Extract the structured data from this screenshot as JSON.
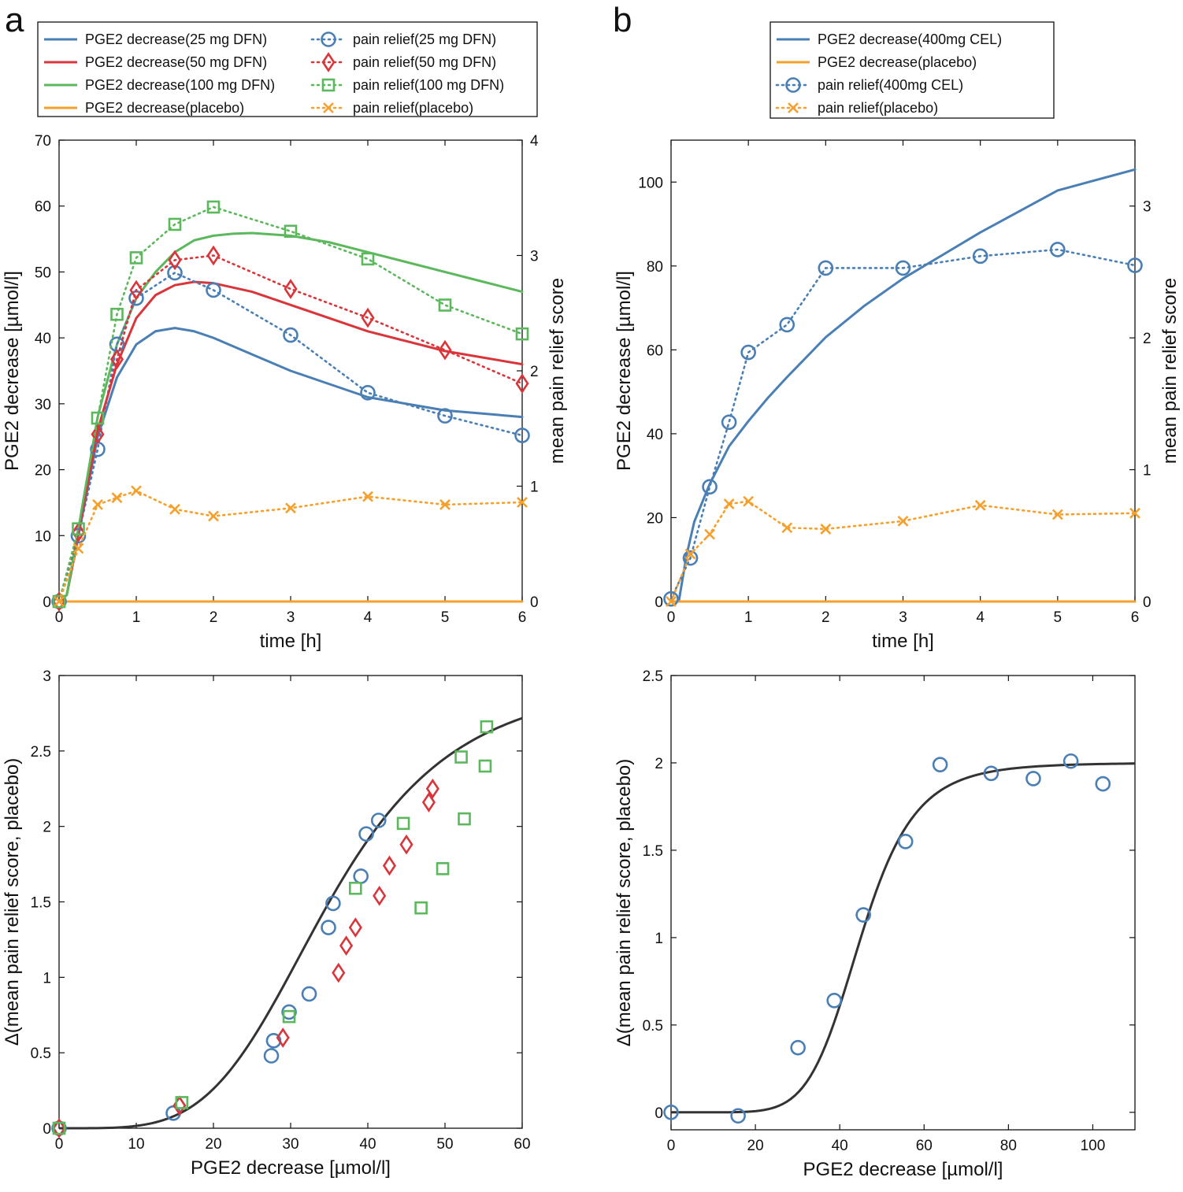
{
  "figure": {
    "panel_labels": [
      "a",
      "b"
    ],
    "colors": {
      "blue": "#4a7fb5",
      "red": "#d9353a",
      "green": "#5cb85c",
      "orange": "#f5a02c",
      "dark": "#333333"
    }
  },
  "chart_data": [
    {
      "id": "a-top",
      "panel": "a",
      "type": "line",
      "xlabel": "time [h]",
      "ylabel": "PGE2 decrease [µmol/l]",
      "ylabel_right": "mean pain relief score",
      "xlim": [
        0,
        6
      ],
      "ylim": [
        0,
        70
      ],
      "ylim_right": [
        0,
        4
      ],
      "xticks": [
        0,
        1,
        2,
        3,
        4,
        5,
        6
      ],
      "yticks": [
        0,
        10,
        20,
        30,
        40,
        50,
        60,
        70
      ],
      "yticks_right": [
        0,
        1,
        2,
        3,
        4
      ],
      "legend": {
        "col1": [
          {
            "label": "PGE2 decrease(25 mg DFN)",
            "color": "blue",
            "style": "solid"
          },
          {
            "label": "PGE2 decrease(50 mg DFN)",
            "color": "red",
            "style": "solid"
          },
          {
            "label": "PGE2 decrease(100 mg DFN)",
            "color": "green",
            "style": "solid"
          },
          {
            "label": "PGE2 decrease(placebo)",
            "color": "orange",
            "style": "solid"
          }
        ],
        "col2": [
          {
            "label": "pain relief(25 mg DFN)",
            "color": "blue",
            "marker": "circle"
          },
          {
            "label": "pain relief(50 mg DFN)",
            "color": "red",
            "marker": "diamond"
          },
          {
            "label": "pain relief(100 mg DFN)",
            "color": "green",
            "marker": "square"
          },
          {
            "label": "pain relief(placebo)",
            "color": "orange",
            "marker": "x"
          }
        ]
      },
      "series": [
        {
          "name": "PGE2 decrease(25 mg DFN)",
          "axis": "left",
          "kind": "line",
          "color": "blue",
          "x": [
            0,
            0.1,
            0.25,
            0.5,
            0.75,
            1,
            1.25,
            1.5,
            1.75,
            2,
            2.5,
            3,
            3.5,
            4,
            4.5,
            5,
            5.5,
            6
          ],
          "y": [
            0,
            1,
            10,
            25,
            34,
            39,
            41,
            41.5,
            41,
            40,
            37.5,
            35,
            33,
            31,
            30,
            29,
            28.5,
            28
          ]
        },
        {
          "name": "PGE2 decrease(50 mg DFN)",
          "axis": "left",
          "kind": "line",
          "color": "red",
          "x": [
            0,
            0.1,
            0.25,
            0.5,
            0.75,
            1,
            1.25,
            1.5,
            1.75,
            2,
            2.5,
            3,
            3.5,
            4,
            4.5,
            5,
            5.5,
            6
          ],
          "y": [
            0,
            1,
            10,
            26,
            36,
            43,
            46.5,
            48,
            48.5,
            48.3,
            47,
            45,
            43,
            41,
            39.5,
            38,
            37,
            36
          ]
        },
        {
          "name": "PGE2 decrease(100 mg DFN)",
          "axis": "left",
          "kind": "line",
          "color": "green",
          "x": [
            0,
            0.1,
            0.25,
            0.5,
            0.75,
            1,
            1.25,
            1.5,
            1.75,
            2,
            2.25,
            2.5,
            3,
            3.5,
            4,
            4.5,
            5,
            5.5,
            6
          ],
          "y": [
            0,
            1,
            11,
            28,
            39,
            46,
            50,
            53,
            54.8,
            55.5,
            55.8,
            55.9,
            55.5,
            54.5,
            53,
            51.5,
            50,
            48.5,
            47
          ]
        },
        {
          "name": "PGE2 decrease(placebo)",
          "axis": "left",
          "kind": "line",
          "color": "orange",
          "x": [
            0,
            6
          ],
          "y": [
            0,
            0
          ]
        },
        {
          "name": "pain relief(25 mg DFN)",
          "axis": "right",
          "kind": "dotted-marker",
          "marker": "circle",
          "color": "blue",
          "x": [
            0,
            0.25,
            0.5,
            0.75,
            1,
            1.5,
            2,
            3,
            4,
            5,
            6
          ],
          "y": [
            0,
            0.57,
            1.32,
            2.23,
            2.63,
            2.85,
            2.7,
            2.31,
            1.81,
            1.61,
            1.44
          ]
        },
        {
          "name": "pain relief(50 mg DFN)",
          "axis": "right",
          "kind": "dotted-marker",
          "marker": "diamond",
          "color": "red",
          "x": [
            0,
            0.25,
            0.5,
            0.75,
            1,
            1.5,
            2,
            3,
            4,
            5,
            6
          ],
          "y": [
            0,
            0.6,
            1.45,
            2.1,
            2.7,
            2.96,
            3.0,
            2.71,
            2.46,
            2.18,
            1.89
          ]
        },
        {
          "name": "pain relief(100 mg DFN)",
          "axis": "right",
          "kind": "dotted-marker",
          "marker": "square",
          "color": "green",
          "x": [
            0,
            0.25,
            0.5,
            0.75,
            1,
            1.5,
            2,
            3,
            4,
            5,
            6
          ],
          "y": [
            0,
            0.63,
            1.59,
            2.49,
            2.98,
            3.27,
            3.42,
            3.21,
            2.97,
            2.57,
            2.32
          ]
        },
        {
          "name": "pain relief(placebo)",
          "axis": "right",
          "kind": "dotted-marker",
          "marker": "x",
          "color": "orange",
          "x": [
            0,
            0.25,
            0.5,
            0.75,
            1,
            1.5,
            2,
            3,
            4,
            5,
            6
          ],
          "y": [
            0,
            0.46,
            0.84,
            0.9,
            0.96,
            0.8,
            0.74,
            0.81,
            0.91,
            0.84,
            0.86
          ]
        }
      ]
    },
    {
      "id": "a-bottom",
      "panel": "a",
      "type": "scatter",
      "xlabel": "PGE2 decrease [µmol/l]",
      "ylabel": "Δ(mean pain relief score, placebo)",
      "xlim": [
        0,
        60
      ],
      "ylim": [
        0,
        3
      ],
      "xticks": [
        0,
        10,
        20,
        30,
        40,
        50,
        60
      ],
      "yticks": [
        0,
        0.5,
        1,
        1.5,
        2,
        2.5,
        3
      ],
      "fit": {
        "color": "dark",
        "emax": 3.0,
        "ec50": 35,
        "hill": 4.2,
        "x": [
          0,
          5,
          10,
          15,
          20,
          25,
          30,
          35,
          40,
          45,
          50,
          55,
          60
        ]
      },
      "series": [
        {
          "name": "25 mg DFN",
          "marker": "circle",
          "color": "blue",
          "x": [
            0,
            14.8,
            27.5,
            27.8,
            29.8,
            32.4,
            34.9,
            35.5,
            39.1,
            39.8,
            41.4
          ],
          "y": [
            0,
            0.1,
            0.48,
            0.58,
            0.77,
            0.89,
            1.33,
            1.49,
            1.67,
            1.95,
            2.04
          ]
        },
        {
          "name": "50 mg DFN",
          "marker": "diamond",
          "color": "red",
          "x": [
            0,
            15.6,
            29,
            36.2,
            37.2,
            38.4,
            41.5,
            42.8,
            45,
            47.9,
            48.4
          ],
          "y": [
            0,
            0.15,
            0.6,
            1.03,
            1.21,
            1.33,
            1.54,
            1.74,
            1.88,
            2.16,
            2.25
          ]
        },
        {
          "name": "100 mg DFN",
          "marker": "square",
          "color": "green",
          "x": [
            0,
            15.9,
            29.8,
            38.4,
            44.6,
            46.9,
            49.7,
            52.1,
            52.5,
            55.2,
            55.4
          ],
          "y": [
            0,
            0.17,
            0.74,
            1.59,
            2.02,
            1.46,
            1.72,
            2.46,
            2.05,
            2.4,
            2.66
          ]
        }
      ]
    },
    {
      "id": "b-top",
      "panel": "b",
      "type": "line",
      "xlabel": "time [h]",
      "ylabel": "PGE2 decrease [µmol/l]",
      "ylabel_right": "mean pain relief score",
      "xlim": [
        0,
        6
      ],
      "ylim": [
        0,
        110
      ],
      "ylim_right": [
        0,
        3.5
      ],
      "xticks": [
        0,
        1,
        2,
        3,
        4,
        5,
        6
      ],
      "yticks": [
        0,
        20,
        40,
        60,
        80,
        100
      ],
      "yticks_right": [
        0,
        1,
        2,
        3
      ],
      "legend": {
        "col1": [
          {
            "label": "PGE2 decrease(400mg CEL)",
            "color": "blue",
            "style": "solid"
          },
          {
            "label": "PGE2 decrease(placebo)",
            "color": "orange",
            "style": "solid"
          },
          {
            "label": "pain relief(400mg CEL)",
            "color": "blue",
            "marker": "circle"
          },
          {
            "label": "pain relief(placebo)",
            "color": "orange",
            "marker": "x"
          }
        ]
      },
      "series": [
        {
          "name": "PGE2 decrease(400mg CEL)",
          "axis": "left",
          "kind": "line",
          "color": "blue",
          "x": [
            0,
            0.1,
            0.2,
            0.3,
            0.5,
            0.75,
            1,
            1.25,
            1.5,
            2,
            2.5,
            3,
            3.5,
            4,
            4.5,
            5,
            5.5,
            6
          ],
          "y": [
            0,
            0,
            11,
            19,
            28,
            37,
            43,
            48.5,
            53.5,
            63,
            70.5,
            77,
            82.5,
            88,
            93,
            98,
            100.5,
            103
          ]
        },
        {
          "name": "PGE2 decrease(placebo)",
          "axis": "left",
          "kind": "line",
          "color": "orange",
          "x": [
            0,
            6
          ],
          "y": [
            0,
            0
          ]
        },
        {
          "name": "pain relief(400mg CEL)",
          "axis": "right",
          "kind": "dotted-marker",
          "marker": "circle",
          "color": "blue",
          "x": [
            0,
            0.25,
            0.5,
            0.75,
            1,
            1.5,
            2,
            3,
            4,
            5,
            6
          ],
          "y": [
            0.02,
            0.33,
            0.87,
            1.36,
            1.89,
            2.1,
            2.53,
            2.53,
            2.62,
            2.67,
            2.55
          ]
        },
        {
          "name": "pain relief(placebo)",
          "axis": "right",
          "kind": "dotted-marker",
          "marker": "x",
          "color": "orange",
          "x": [
            0,
            0.25,
            0.5,
            0.75,
            1,
            1.5,
            2,
            3,
            4,
            5,
            6
          ],
          "y": [
            0,
            0.36,
            0.51,
            0.74,
            0.76,
            0.56,
            0.55,
            0.61,
            0.73,
            0.66,
            0.67
          ]
        }
      ]
    },
    {
      "id": "b-bottom",
      "panel": "b",
      "type": "scatter",
      "xlabel": "PGE2 decrease [µmol/l]",
      "ylabel": "Δ(mean pain relief score, placebo)",
      "xlim": [
        0,
        110
      ],
      "ylim": [
        -0.1,
        2.5
      ],
      "xticks": [
        0,
        20,
        40,
        60,
        80,
        100
      ],
      "yticks": [
        0,
        0.5,
        1,
        1.5,
        2,
        2.5
      ],
      "fit": {
        "color": "dark",
        "emax": 2.0,
        "ec50": 45,
        "hill": 7,
        "x": [
          0,
          10,
          20,
          25,
          30,
          35,
          40,
          45,
          50,
          55,
          60,
          70,
          80,
          90,
          100,
          110
        ]
      },
      "series": [
        {
          "name": "400mg CEL",
          "marker": "circle",
          "color": "blue",
          "x": [
            0,
            15.9,
            30.1,
            38.7,
            45.6,
            55.6,
            63.8,
            75.9,
            85.9,
            94.8,
            102.4
          ],
          "y": [
            0,
            -0.02,
            0.37,
            0.64,
            1.13,
            1.55,
            1.99,
            1.94,
            1.91,
            2.01,
            1.88
          ]
        }
      ]
    }
  ]
}
